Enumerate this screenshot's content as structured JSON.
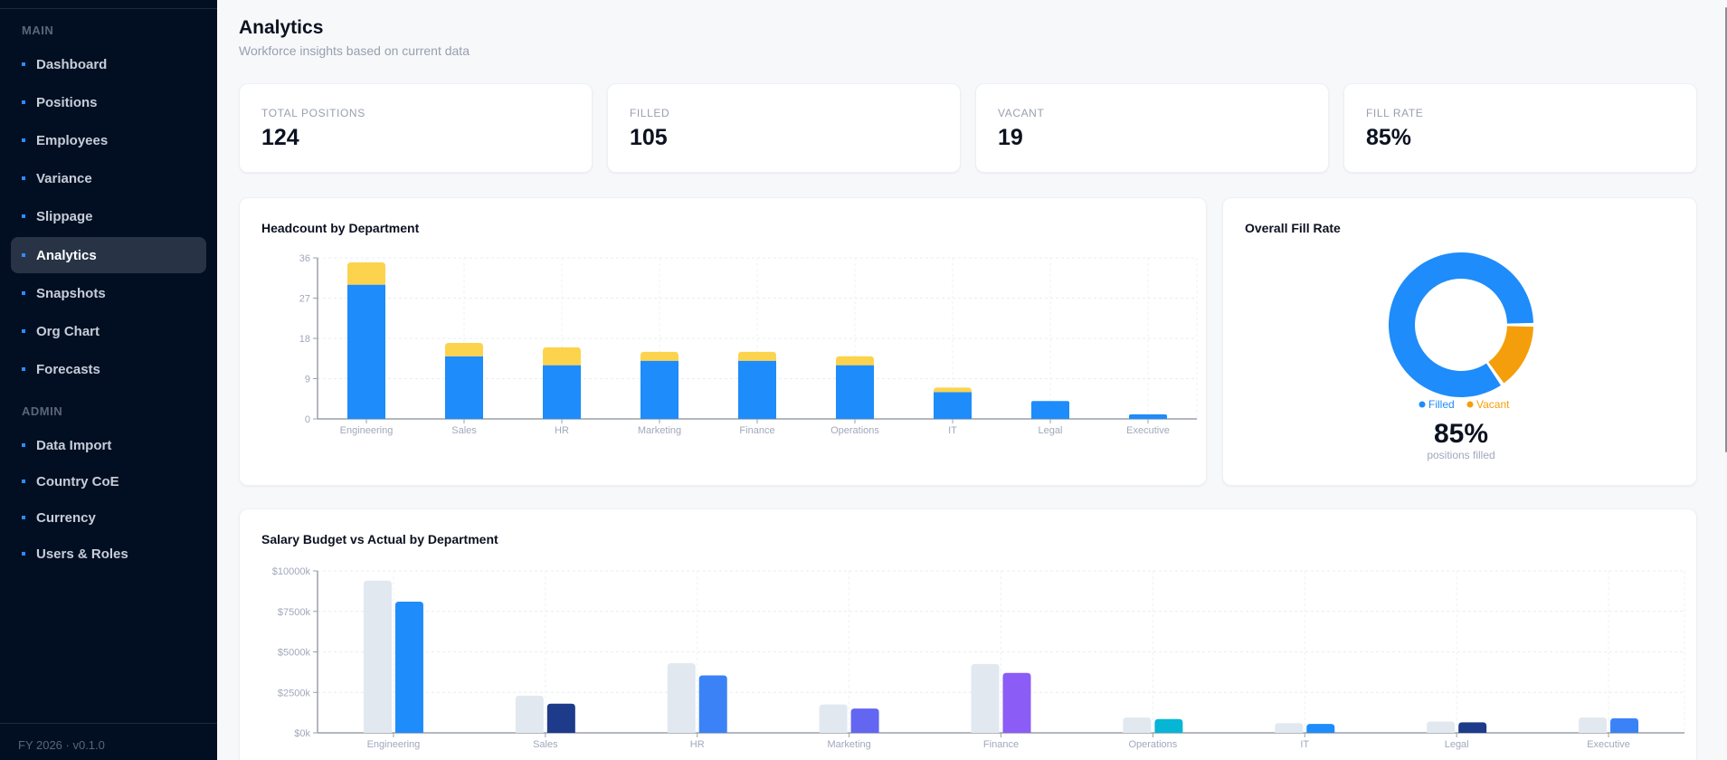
{
  "sidebar": {
    "sections": [
      {
        "label": "MAIN",
        "items": [
          {
            "label": "Dashboard",
            "active": false
          },
          {
            "label": "Positions",
            "active": false
          },
          {
            "label": "Employees",
            "active": false
          },
          {
            "label": "Variance",
            "active": false
          },
          {
            "label": "Slippage",
            "active": false
          },
          {
            "label": "Analytics",
            "active": true
          },
          {
            "label": "Snapshots",
            "active": false
          },
          {
            "label": "Org Chart",
            "active": false
          },
          {
            "label": "Forecasts",
            "active": false
          }
        ]
      },
      {
        "label": "ADMIN",
        "items": [
          {
            "label": "Data Import",
            "active": false
          },
          {
            "label": "Country CoE",
            "active": false
          },
          {
            "label": "Currency",
            "active": false
          },
          {
            "label": "Users & Roles",
            "active": false
          }
        ]
      }
    ],
    "footer": "FY 2026 · v0.1.0"
  },
  "header": {
    "title": "Analytics",
    "subtitle": "Workforce insights based on current data"
  },
  "stats": [
    {
      "label": "TOTAL POSITIONS",
      "value": "124"
    },
    {
      "label": "FILLED",
      "value": "105"
    },
    {
      "label": "VACANT",
      "value": "19"
    },
    {
      "label": "FILL RATE",
      "value": "85%"
    }
  ],
  "colors": {
    "filled": "#1e8cfa",
    "vacant_bar": "#fcd34d",
    "vacant_donut": "#f59e0b",
    "budget": "#e2e8f0"
  },
  "fill_rate": {
    "title": "Overall Fill Rate",
    "legend": [
      {
        "label": "Filled",
        "color": "#1e8cfa"
      },
      {
        "label": "Vacant",
        "color": "#f59e0b"
      }
    ],
    "value": "85%",
    "caption": "positions filled"
  },
  "chart_data": [
    {
      "type": "bar",
      "stacked": true,
      "title": "Headcount by Department",
      "categories": [
        "Engineering",
        "Sales",
        "HR",
        "Marketing",
        "Finance",
        "Operations",
        "IT",
        "Legal",
        "Executive"
      ],
      "series": [
        {
          "name": "Filled",
          "color": "#1e8cfa",
          "values": [
            30,
            14,
            12,
            13,
            13,
            12,
            6,
            4,
            1
          ]
        },
        {
          "name": "Vacant",
          "color": "#fcd34d",
          "values": [
            5,
            3,
            4,
            2,
            2,
            2,
            1,
            0,
            0
          ]
        }
      ],
      "yticks": [
        0,
        9,
        18,
        27,
        36
      ],
      "ylim": [
        0,
        36
      ],
      "grid": true,
      "xlabel": "",
      "ylabel": ""
    },
    {
      "type": "pie",
      "donut": true,
      "title": "Overall Fill Rate",
      "categories": [
        "Filled",
        "Vacant"
      ],
      "values": [
        105,
        19
      ],
      "colors": [
        "#1e8cfa",
        "#f59e0b"
      ],
      "center_label": "85%",
      "legend_position": "bottom"
    },
    {
      "type": "bar",
      "title": "Salary Budget vs Actual by Department",
      "categories": [
        "Engineering",
        "Sales",
        "HR",
        "Marketing",
        "Finance",
        "Operations",
        "IT",
        "Legal",
        "Executive"
      ],
      "series": [
        {
          "name": "Budget",
          "color": "#e2e8f0",
          "values": [
            9400,
            2300,
            4300,
            1750,
            4250,
            950,
            600,
            700,
            950
          ]
        },
        {
          "name": "Actual",
          "colors": [
            "#1e8cfa",
            "#1e3a8a",
            "#3b82f6",
            "#6366f1",
            "#8b5cf6",
            "#06b6d4",
            "#1e8cfa",
            "#1e3a8a",
            "#3b82f6"
          ],
          "values": [
            8100,
            1800,
            3550,
            1500,
            3700,
            850,
            550,
            650,
            900
          ]
        }
      ],
      "yticks": [
        "$0k",
        "$2500k",
        "$5000k",
        "$7500k",
        "$10000k"
      ],
      "ylim": [
        0,
        10000
      ],
      "unit": "$k",
      "grid": true,
      "xlabel": "",
      "ylabel": ""
    }
  ]
}
